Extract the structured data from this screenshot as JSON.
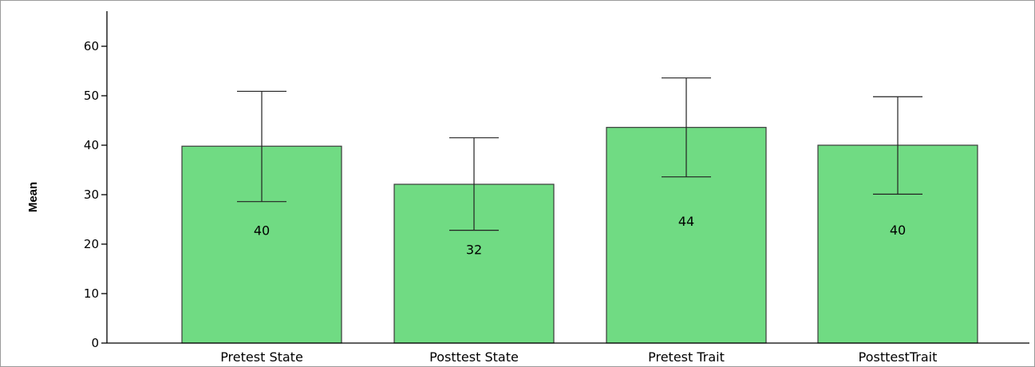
{
  "chart_data": {
    "type": "bar",
    "title": "",
    "xlabel": "",
    "ylabel": "Mean",
    "ylim": [
      0,
      65
    ],
    "yticks": [
      0,
      10,
      20,
      30,
      40,
      50,
      60
    ],
    "grid": false,
    "legend": "none",
    "categories": [
      "Pretest State",
      "Posttest State",
      "Pretest Trait",
      "PosttestTrait"
    ],
    "values": [
      39.8,
      32.1,
      43.6,
      40.0
    ],
    "error_low": [
      28.6,
      22.8,
      33.6,
      30.1
    ],
    "error_high": [
      50.9,
      41.5,
      53.6,
      49.8
    ],
    "data_labels": [
      "40",
      "32",
      "44",
      "40"
    ],
    "bar_color": "#70db83"
  }
}
